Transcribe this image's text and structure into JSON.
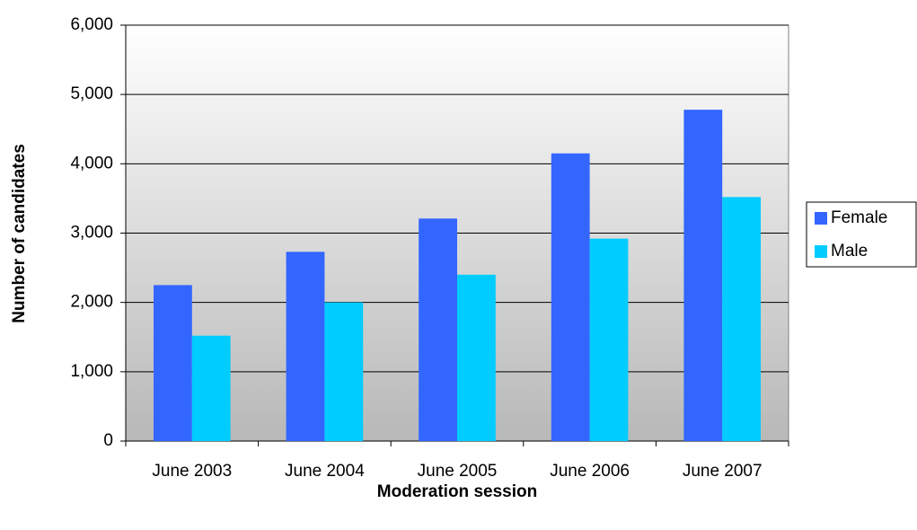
{
  "chart_data": {
    "type": "bar",
    "x_label": "Moderation session",
    "y_label": "Number of candidates",
    "categories": [
      "June 2003",
      "June 2004",
      "June 2005",
      "June 2006",
      "June 2007"
    ],
    "series": [
      {
        "name": "Female",
        "color": "#3366ff",
        "values": [
          2250,
          2730,
          3210,
          4150,
          4780
        ]
      },
      {
        "name": "Male",
        "color": "#00ccff",
        "values": [
          1520,
          2000,
          2400,
          2920,
          3520
        ]
      }
    ],
    "ylim": [
      0,
      6000
    ],
    "yticks": [
      0,
      {
        "value": 1000,
        "label": "1,000"
      },
      {
        "value": 2000,
        "label": "2,000"
      },
      {
        "value": 3000,
        "label": "3,000"
      },
      {
        "value": 4000,
        "label": "4,000"
      },
      {
        "value": 5000,
        "label": "5,000"
      },
      {
        "value": 6000,
        "label": "6,000"
      }
    ],
    "grid": true,
    "legend": "right"
  }
}
